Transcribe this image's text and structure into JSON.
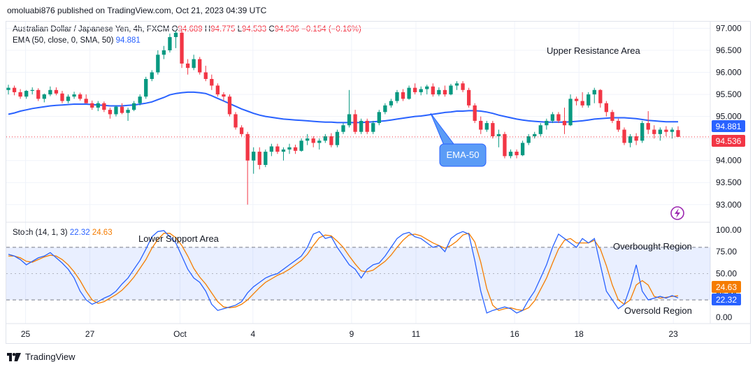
{
  "header": {
    "publisher": "omoluabi876 published on TradingView.com, Oct 21, 2023 04:39 UTC"
  },
  "legend": {
    "symbol": "Australian Dollar / Japanese Yen, 4h, FXCM",
    "ohlc": {
      "o_label": "O",
      "o": "94.689",
      "h_label": "H",
      "h": "94.775",
      "l_label": "L",
      "l": "94.533",
      "c_label": "C",
      "c": "94.536",
      "change": "−0.154 (−0.16%)"
    },
    "ema_label": "EMA (50, close, 0, SMA, 50)",
    "ema_value": "94.881",
    "stoch_label": "Stoch (14, 1, 3)",
    "stoch_k": "22.32",
    "stoch_d": "24.63"
  },
  "annotations": {
    "upper_resistance": "Upper Resistance Area",
    "lower_support": "Lower Support Area",
    "overbought": "Overbought Region",
    "oversold": "Oversold Region",
    "ema_callout": "EMA-50"
  },
  "price_badges": {
    "ema": "94.881",
    "close": "94.536"
  },
  "stoch_badges": {
    "d": "24.63",
    "k": "22.32"
  },
  "footer": {
    "brand": "TradingView"
  },
  "colors": {
    "up": "#089981",
    "down": "#f23645",
    "ema": "#2962ff",
    "stoch_k": "#2962ff",
    "stoch_d": "#f57c00",
    "band": "#2962ff"
  },
  "chart_data": [
    {
      "type": "candlestick",
      "title": "Australian Dollar / Japanese Yen, 4h, FXCM",
      "y_ticks": [
        "97.000",
        "96.500",
        "96.000",
        "95.500",
        "95.000",
        "94.500",
        "94.000",
        "93.500",
        "93.000"
      ],
      "ylim": [
        92.6,
        97.15
      ],
      "x_ticks": [
        "25",
        "27",
        "Oct",
        "4",
        "9",
        "11",
        "16",
        "18",
        "23"
      ],
      "ema": {
        "name": "EMA (50, close, 0, SMA, 50)",
        "values": [
          95.05,
          95.08,
          95.12,
          95.15,
          95.18,
          95.2,
          95.22,
          95.24,
          95.25,
          95.26,
          95.27,
          95.28,
          95.28,
          95.28,
          95.27,
          95.26,
          95.25,
          95.24,
          95.24,
          95.24,
          95.25,
          95.26,
          95.28,
          95.3,
          95.33,
          95.38,
          95.43,
          95.49,
          95.52,
          95.54,
          95.55,
          95.55,
          95.54,
          95.52,
          95.47,
          95.41,
          95.35,
          95.29,
          95.23,
          95.17,
          95.12,
          95.07,
          95.03,
          95.0,
          94.98,
          94.96,
          94.94,
          94.93,
          94.92,
          94.91,
          94.9,
          94.89,
          94.88,
          94.87,
          94.87,
          94.86,
          94.86,
          94.86,
          94.86,
          94.86,
          94.87,
          94.88,
          94.89,
          94.9,
          94.92,
          94.94,
          94.96,
          94.98,
          95.0,
          95.01,
          95.03,
          95.05,
          95.07,
          95.09,
          95.1,
          95.12,
          95.12,
          95.13,
          95.13,
          95.12,
          95.1,
          95.07,
          95.03,
          95.0,
          94.97,
          94.94,
          94.92,
          94.9,
          94.89,
          94.88,
          94.87,
          94.87,
          94.87,
          94.87,
          94.88,
          94.89,
          94.9,
          94.92,
          94.94,
          94.95,
          94.96,
          94.97,
          94.97,
          94.97,
          94.96,
          94.95,
          94.93,
          94.91,
          94.9,
          94.89,
          94.88,
          94.88,
          94.88
        ]
      },
      "candles": [
        [
          95.6,
          95.72,
          95.5,
          95.65
        ],
        [
          95.65,
          95.7,
          95.48,
          95.55
        ],
        [
          95.55,
          95.62,
          95.4,
          95.45
        ],
        [
          95.45,
          95.6,
          95.4,
          95.58
        ],
        [
          95.58,
          95.66,
          95.5,
          95.6
        ],
        [
          95.6,
          95.64,
          95.35,
          95.4
        ],
        [
          95.4,
          95.52,
          95.32,
          95.5
        ],
        [
          95.5,
          95.68,
          95.46,
          95.6
        ],
        [
          95.6,
          95.66,
          95.48,
          95.52
        ],
        [
          95.52,
          95.58,
          95.3,
          95.35
        ],
        [
          95.35,
          95.5,
          95.3,
          95.45
        ],
        [
          95.45,
          95.56,
          95.4,
          95.5
        ],
        [
          95.5,
          95.54,
          95.36,
          95.4
        ],
        [
          95.4,
          95.5,
          95.3,
          95.3
        ],
        [
          95.3,
          95.36,
          95.15,
          95.2
        ],
        [
          95.2,
          95.35,
          95.12,
          95.3
        ],
        [
          95.3,
          95.34,
          95.1,
          95.15
        ],
        [
          95.15,
          95.2,
          94.95,
          95.05
        ],
        [
          95.05,
          95.25,
          95.0,
          95.22
        ],
        [
          95.22,
          95.3,
          95.05,
          95.08
        ],
        [
          95.08,
          95.2,
          94.9,
          95.15
        ],
        [
          95.15,
          95.35,
          95.12,
          95.3
        ],
        [
          95.3,
          95.5,
          95.25,
          95.45
        ],
        [
          95.45,
          95.9,
          95.4,
          95.85
        ],
        [
          95.85,
          96.05,
          95.8,
          96.0
        ],
        [
          96.0,
          96.5,
          95.95,
          96.4
        ],
        [
          96.4,
          96.6,
          96.3,
          96.5
        ],
        [
          96.5,
          96.88,
          96.45,
          96.8
        ],
        [
          96.8,
          96.95,
          96.55,
          96.9
        ],
        [
          96.9,
          96.95,
          96.1,
          96.2
        ],
        [
          96.2,
          96.3,
          95.95,
          96.1
        ],
        [
          96.1,
          96.4,
          96.05,
          96.3
        ],
        [
          96.3,
          96.35,
          95.95,
          96.0
        ],
        [
          96.0,
          96.15,
          95.8,
          95.85
        ],
        [
          95.85,
          95.95,
          95.6,
          95.7
        ],
        [
          95.7,
          95.75,
          95.45,
          95.5
        ],
        [
          95.5,
          95.55,
          95.35,
          95.45
        ],
        [
          95.45,
          95.5,
          95.0,
          95.05
        ],
        [
          95.05,
          95.1,
          94.7,
          94.75
        ],
        [
          94.75,
          94.8,
          94.55,
          94.6
        ],
        [
          94.6,
          94.65,
          93.0,
          94.0
        ],
        [
          94.0,
          94.3,
          93.7,
          94.2
        ],
        [
          94.2,
          94.3,
          93.8,
          93.9
        ],
        [
          93.9,
          94.25,
          93.85,
          94.2
        ],
        [
          94.2,
          94.38,
          94.1,
          94.32
        ],
        [
          94.32,
          94.38,
          94.15,
          94.2
        ],
        [
          94.2,
          94.3,
          94.0,
          94.25
        ],
        [
          94.25,
          94.38,
          94.15,
          94.3
        ],
        [
          94.3,
          94.36,
          94.15,
          94.22
        ],
        [
          94.22,
          94.5,
          94.2,
          94.45
        ],
        [
          94.45,
          94.6,
          94.35,
          94.5
        ],
        [
          94.5,
          94.55,
          94.3,
          94.4
        ],
        [
          94.4,
          94.5,
          94.25,
          94.45
        ],
        [
          94.45,
          94.6,
          94.4,
          94.55
        ],
        [
          94.55,
          94.62,
          94.3,
          94.35
        ],
        [
          94.35,
          94.7,
          94.3,
          94.65
        ],
        [
          94.65,
          94.85,
          94.6,
          94.8
        ],
        [
          94.8,
          95.6,
          94.75,
          95.05
        ],
        [
          95.05,
          95.15,
          94.6,
          94.65
        ],
        [
          94.65,
          94.95,
          94.6,
          94.9
        ],
        [
          94.9,
          94.95,
          94.6,
          94.65
        ],
        [
          94.65,
          94.9,
          94.6,
          94.85
        ],
        [
          94.85,
          95.15,
          94.8,
          95.1
        ],
        [
          95.1,
          95.3,
          95.05,
          95.25
        ],
        [
          95.25,
          95.4,
          95.2,
          95.35
        ],
        [
          95.35,
          95.6,
          95.3,
          95.55
        ],
        [
          95.55,
          95.62,
          95.35,
          95.4
        ],
        [
          95.4,
          95.7,
          95.38,
          95.65
        ],
        [
          95.65,
          95.75,
          95.5,
          95.55
        ],
        [
          95.55,
          95.68,
          95.48,
          95.62
        ],
        [
          95.62,
          95.72,
          95.5,
          95.68
        ],
        [
          95.68,
          95.75,
          95.45,
          95.5
        ],
        [
          95.5,
          95.66,
          95.46,
          95.6
        ],
        [
          95.6,
          95.7,
          95.45,
          95.5
        ],
        [
          95.5,
          95.74,
          95.48,
          95.7
        ],
        [
          95.7,
          95.8,
          95.6,
          95.75
        ],
        [
          95.75,
          95.8,
          95.55,
          95.6
        ],
        [
          95.6,
          95.65,
          95.2,
          95.25
        ],
        [
          95.25,
          95.3,
          94.85,
          94.9
        ],
        [
          94.9,
          95.0,
          94.6,
          94.7
        ],
        [
          94.7,
          94.9,
          94.65,
          94.85
        ],
        [
          94.85,
          94.9,
          94.5,
          94.55
        ],
        [
          94.55,
          94.7,
          94.3,
          94.6
        ],
        [
          94.6,
          94.65,
          94.05,
          94.1
        ],
        [
          94.1,
          94.25,
          94.05,
          94.2
        ],
        [
          94.2,
          94.25,
          94.05,
          94.12
        ],
        [
          94.12,
          94.45,
          94.1,
          94.4
        ],
        [
          94.4,
          94.6,
          94.35,
          94.55
        ],
        [
          94.55,
          94.65,
          94.5,
          94.6
        ],
        [
          94.6,
          94.85,
          94.55,
          94.8
        ],
        [
          94.8,
          94.95,
          94.7,
          94.9
        ],
        [
          94.9,
          95.1,
          94.85,
          95.05
        ],
        [
          95.05,
          95.1,
          94.85,
          94.9
        ],
        [
          94.9,
          95.2,
          94.6,
          94.8
        ],
        [
          94.8,
          95.5,
          94.78,
          95.4
        ],
        [
          95.4,
          95.45,
          95.25,
          95.35
        ],
        [
          95.35,
          95.55,
          95.2,
          95.25
        ],
        [
          95.25,
          95.55,
          95.2,
          95.5
        ],
        [
          95.5,
          95.65,
          95.3,
          95.6
        ],
        [
          95.6,
          95.62,
          95.2,
          95.3
        ],
        [
          95.3,
          95.35,
          95.0,
          95.1
        ],
        [
          95.1,
          95.15,
          94.85,
          94.9
        ],
        [
          94.9,
          94.95,
          94.65,
          94.7
        ],
        [
          94.7,
          94.75,
          94.35,
          94.4
        ],
        [
          94.4,
          94.6,
          94.3,
          94.55
        ],
        [
          94.55,
          94.62,
          94.35,
          94.45
        ],
        [
          94.45,
          94.9,
          94.4,
          94.85
        ],
        [
          94.85,
          95.12,
          94.6,
          94.7
        ],
        [
          94.7,
          94.8,
          94.5,
          94.6
        ],
        [
          94.6,
          94.75,
          94.45,
          94.7
        ],
        [
          94.7,
          94.78,
          94.55,
          94.65
        ],
        [
          94.65,
          94.75,
          94.5,
          94.7
        ],
        [
          94.69,
          94.775,
          94.533,
          94.536
        ]
      ]
    },
    {
      "type": "line",
      "title": "Stoch (14, 1, 3)",
      "ylim": [
        -7,
        103
      ],
      "y_ticks": [
        "100.00",
        "75.00",
        "50.00",
        "25.00",
        "0.00"
      ],
      "bands": [
        80,
        20
      ],
      "series": [
        {
          "name": "%K",
          "values": [
            72,
            70,
            66,
            60,
            64,
            68,
            70,
            74,
            68,
            62,
            55,
            45,
            30,
            20,
            15,
            18,
            22,
            25,
            30,
            38,
            45,
            55,
            65,
            78,
            92,
            98,
            99,
            92,
            85,
            70,
            55,
            45,
            40,
            30,
            15,
            8,
            10,
            12,
            14,
            18,
            28,
            35,
            40,
            45,
            48,
            50,
            55,
            60,
            65,
            70,
            80,
            95,
            98,
            90,
            92,
            80,
            70,
            60,
            55,
            45,
            55,
            60,
            62,
            70,
            80,
            90,
            95,
            97,
            92,
            90,
            85,
            80,
            82,
            75,
            90,
            95,
            98,
            95,
            65,
            30,
            5,
            8,
            10,
            12,
            10,
            5,
            8,
            20,
            30,
            45,
            60,
            80,
            95,
            90,
            85,
            80,
            90,
            85,
            90,
            60,
            30,
            20,
            10,
            15,
            35,
            60,
            30,
            20,
            22,
            24,
            22,
            25,
            22.32
          ]
        },
        {
          "name": "%D",
          "values": [
            70,
            70,
            68,
            64,
            63,
            66,
            69,
            71,
            70,
            66,
            60,
            52,
            42,
            30,
            20,
            16,
            18,
            22,
            26,
            31,
            38,
            46,
            56,
            66,
            79,
            89,
            96,
            96,
            91,
            82,
            70,
            56,
            46,
            38,
            28,
            18,
            12,
            11,
            12,
            15,
            20,
            27,
            34,
            40,
            44,
            48,
            51,
            55,
            60,
            65,
            72,
            82,
            91,
            94,
            93,
            87,
            80,
            70,
            61,
            53,
            52,
            54,
            59,
            64,
            71,
            80,
            88,
            94,
            95,
            93,
            89,
            85,
            82,
            79,
            82,
            87,
            94,
            96,
            86,
            63,
            33,
            14,
            8,
            10,
            11,
            9,
            8,
            11,
            19,
            32,
            45,
            62,
            78,
            88,
            90,
            85,
            85,
            85,
            88,
            78,
            59,
            37,
            20,
            15,
            20,
            37,
            42,
            37,
            24,
            22,
            23,
            24,
            24.63
          ]
        }
      ]
    }
  ]
}
